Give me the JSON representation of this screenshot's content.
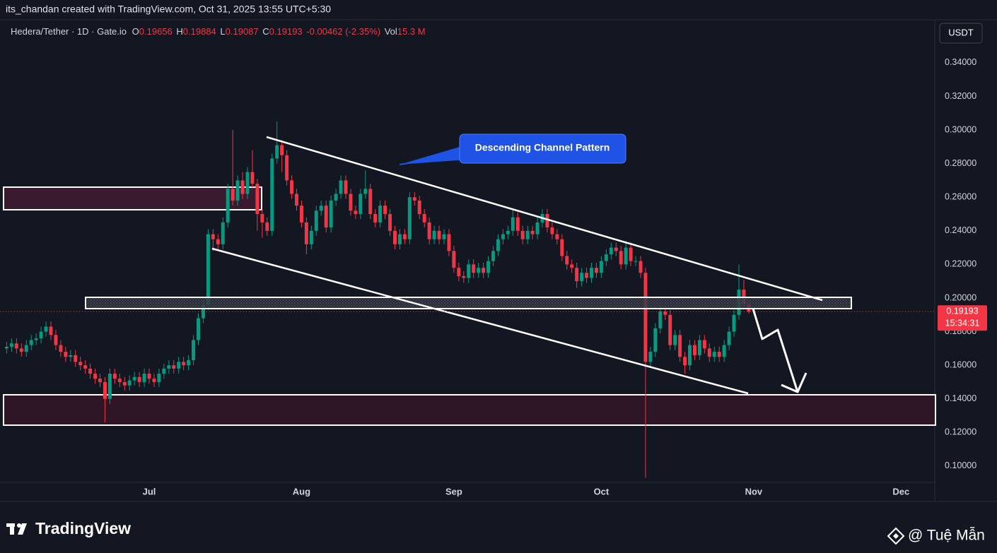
{
  "chart_data": {
    "type": "candlestick",
    "attribution": "its_chandan created with TradingView.com, Oct 31, 2025 13:55 UTC+5:30",
    "legend": {
      "symbol": "Hedera/Tether · 1D · Gate.io",
      "open_label": "O",
      "high_label": "H",
      "low_label": "L",
      "close_label": "C",
      "change": "-0.00462 (-2.35%)",
      "volume_label": "Vol",
      "volume": "15.3 M"
    },
    "currency": "USDT",
    "countdown": "15:34:31",
    "annotations": [
      "Descending Channel Pattern"
    ],
    "logo": "TradingView",
    "watermark": "@ Tuệ Mẫn",
    "up_color": "#089981",
    "down_color": "#f23645",
    "grid": false,
    "ylim": [
      0.0903,
      0.3656
    ],
    "yticks": [
      {
        "value": 0.1,
        "label": "0.10000"
      },
      {
        "value": 0.12,
        "label": "0.12000"
      },
      {
        "value": 0.14,
        "label": "0.14000"
      },
      {
        "value": 0.16,
        "label": "0.16000"
      },
      {
        "value": 0.18,
        "label": "0.18000"
      },
      {
        "value": 0.2,
        "label": "0.20000"
      },
      {
        "value": 0.22,
        "label": "0.22000"
      },
      {
        "value": 0.24,
        "label": "0.24000"
      },
      {
        "value": 0.26,
        "label": "0.26000"
      },
      {
        "value": 0.28,
        "label": "0.28000"
      },
      {
        "value": 0.3,
        "label": "0.30000"
      },
      {
        "value": 0.32,
        "label": "0.32000"
      },
      {
        "value": 0.34,
        "label": "0.34000"
      }
    ],
    "categories": [
      null,
      null,
      null,
      null,
      null,
      null,
      null,
      null,
      null,
      null,
      null,
      null,
      null,
      null,
      null,
      null,
      null,
      null,
      null,
      null,
      null,
      null,
      null,
      null,
      null,
      null,
      null,
      null,
      null,
      null,
      "Jul",
      null,
      null,
      null,
      null,
      null,
      null,
      null,
      null,
      null,
      null,
      null,
      null,
      null,
      null,
      null,
      null,
      null,
      null,
      null,
      null,
      null,
      null,
      null,
      null,
      null,
      null,
      null,
      null,
      null,
      null,
      "Aug",
      null,
      null,
      null,
      null,
      null,
      null,
      null,
      null,
      null,
      null,
      null,
      null,
      null,
      null,
      null,
      null,
      null,
      null,
      null,
      null,
      null,
      null,
      null,
      null,
      null,
      null,
      null,
      null,
      null,
      null,
      "Sep",
      null,
      null,
      null,
      null,
      null,
      null,
      null,
      null,
      null,
      null,
      null,
      null,
      null,
      null,
      null,
      null,
      null,
      null,
      null,
      null,
      null,
      null,
      null,
      null,
      null,
      null,
      null,
      null,
      null,
      "Oct",
      null,
      null,
      null,
      null,
      null,
      null,
      null,
      null,
      null,
      null,
      null,
      null,
      null,
      null,
      null,
      null,
      null,
      null,
      null,
      null,
      null,
      null,
      null,
      null,
      null,
      null,
      null,
      null,
      null,
      null,
      "Nov",
      null,
      null,
      null,
      null,
      null,
      null,
      null,
      null,
      null,
      null,
      null,
      null,
      null,
      null,
      null,
      null,
      null,
      null,
      null,
      null,
      null,
      null,
      null,
      null,
      null,
      null,
      null,
      null,
      null,
      "Dec"
    ],
    "open": [
      null,
      0.17,
      0.171,
      0.173,
      0.17,
      0.168,
      0.172,
      0.175,
      0.176,
      0.18,
      0.183,
      0.178,
      0.172,
      0.168,
      0.165,
      0.166,
      0.162,
      0.16,
      0.158,
      0.155,
      0.152,
      0.15,
      0.14,
      0.155,
      0.152,
      0.15,
      0.148,
      0.151,
      0.153,
      0.15,
      0.155,
      0.152,
      0.15,
      0.155,
      0.158,
      0.16,
      0.158,
      0.162,
      0.16,
      0.163,
      0.175,
      0.188,
      0.196,
      0.238,
      0.235,
      0.232,
      0.245,
      0.265,
      0.258,
      0.27,
      0.262,
      0.275,
      0.268,
      0.25,
      0.245,
      0.24,
      0.283,
      0.291,
      0.285,
      0.27,
      0.262,
      0.255,
      0.245,
      0.232,
      0.24,
      0.252,
      0.255,
      0.242,
      0.258,
      0.262,
      0.27,
      0.262,
      0.252,
      0.25,
      0.262,
      0.265,
      0.25,
      0.245,
      0.255,
      0.25,
      0.24,
      0.232,
      0.238,
      0.235,
      0.26,
      0.258,
      0.25,
      0.245,
      0.235,
      0.24,
      0.235,
      0.238,
      0.228,
      0.218,
      0.213,
      0.212,
      0.22,
      0.215,
      0.218,
      0.215,
      0.222,
      0.228,
      0.235,
      0.238,
      0.24,
      0.248,
      0.24,
      0.235,
      0.24,
      0.238,
      0.245,
      0.25,
      0.242,
      0.238,
      0.235,
      0.225,
      0.22,
      0.218,
      0.21,
      0.215,
      0.212,
      0.218,
      0.215,
      0.222,
      0.226,
      0.23,
      0.228,
      0.22,
      0.23,
      0.222,
      0.222,
      0.215,
      0.162,
      0.168,
      0.182,
      0.192,
      0.19,
      0.172,
      0.178,
      0.165,
      0.16,
      0.172,
      0.166,
      0.175,
      0.17,
      0.165,
      0.168,
      0.165,
      0.172,
      0.18,
      0.19,
      0.205,
      0.19656,
      null,
      null,
      null,
      null,
      null,
      null,
      null,
      null,
      null,
      null,
      null,
      null,
      null,
      null,
      null,
      null,
      null,
      null,
      null,
      null,
      null,
      null,
      null,
      null,
      null,
      null,
      null,
      null,
      null,
      null,
      null
    ],
    "high": [
      null,
      0.174,
      0.176,
      0.176,
      0.173,
      0.175,
      0.178,
      0.179,
      0.183,
      0.186,
      0.186,
      0.181,
      0.175,
      0.171,
      0.169,
      0.169,
      0.165,
      0.163,
      0.161,
      0.158,
      0.155,
      0.153,
      0.158,
      0.158,
      0.155,
      0.153,
      0.154,
      0.156,
      0.156,
      0.158,
      0.158,
      0.155,
      0.158,
      0.161,
      0.163,
      0.163,
      0.165,
      0.165,
      0.166,
      0.178,
      0.191,
      0.199,
      0.241,
      0.241,
      0.238,
      0.248,
      0.268,
      0.3,
      0.273,
      0.275,
      0.278,
      0.288,
      0.271,
      0.253,
      0.248,
      0.286,
      0.305,
      0.294,
      0.288,
      0.273,
      0.265,
      0.258,
      0.248,
      0.243,
      0.255,
      0.258,
      0.258,
      0.261,
      0.265,
      0.273,
      0.273,
      0.265,
      0.255,
      0.265,
      0.276,
      0.268,
      0.253,
      0.258,
      0.258,
      0.253,
      0.243,
      0.241,
      0.241,
      0.263,
      0.263,
      0.261,
      0.253,
      0.248,
      0.243,
      0.243,
      0.241,
      0.241,
      0.231,
      0.221,
      0.216,
      0.223,
      0.223,
      0.221,
      0.221,
      0.225,
      0.231,
      0.238,
      0.241,
      0.243,
      0.253,
      0.251,
      0.243,
      0.243,
      0.243,
      0.248,
      0.253,
      0.253,
      0.245,
      0.241,
      0.238,
      0.228,
      0.223,
      0.221,
      0.218,
      0.218,
      0.221,
      0.221,
      0.225,
      0.229,
      0.233,
      0.233,
      0.231,
      0.234,
      0.233,
      0.225,
      0.225,
      0.218,
      0.171,
      0.185,
      0.195,
      0.195,
      0.193,
      0.181,
      0.181,
      0.168,
      0.175,
      0.175,
      0.178,
      0.178,
      0.173,
      0.171,
      0.171,
      0.175,
      0.183,
      0.193,
      0.22,
      0.211,
      0.19884,
      null,
      null,
      null,
      null,
      null,
      null,
      null,
      null,
      null,
      null,
      null,
      null,
      null,
      null,
      null,
      null,
      null,
      null,
      null,
      null,
      null,
      null,
      null,
      null,
      null,
      null,
      null,
      null,
      null,
      null,
      null
    ],
    "low": [
      null,
      0.167,
      0.168,
      0.167,
      0.165,
      0.165,
      0.169,
      0.172,
      0.173,
      0.177,
      0.175,
      0.169,
      0.165,
      0.162,
      0.162,
      0.159,
      0.157,
      0.155,
      0.152,
      0.149,
      0.147,
      0.126,
      0.137,
      0.149,
      0.147,
      0.145,
      0.145,
      0.148,
      0.147,
      0.147,
      0.149,
      0.147,
      0.147,
      0.152,
      0.155,
      0.155,
      0.155,
      0.157,
      0.157,
      0.16,
      0.172,
      0.185,
      0.193,
      0.228,
      0.229,
      0.229,
      0.242,
      0.255,
      0.255,
      0.259,
      0.259,
      0.265,
      0.24,
      0.236,
      0.237,
      0.237,
      0.28,
      0.275,
      0.267,
      0.259,
      0.252,
      0.242,
      0.226,
      0.229,
      0.237,
      0.249,
      0.239,
      0.239,
      0.255,
      0.259,
      0.259,
      0.249,
      0.247,
      0.247,
      0.259,
      0.247,
      0.242,
      0.242,
      0.247,
      0.237,
      0.229,
      0.229,
      0.232,
      0.232,
      0.255,
      0.247,
      0.242,
      0.232,
      0.232,
      0.232,
      0.232,
      0.225,
      0.215,
      0.21,
      0.209,
      0.209,
      0.212,
      0.212,
      0.212,
      0.212,
      0.219,
      0.225,
      0.232,
      0.235,
      0.237,
      0.237,
      0.232,
      0.232,
      0.235,
      0.235,
      0.242,
      0.239,
      0.235,
      0.232,
      0.222,
      0.217,
      0.215,
      0.206,
      0.207,
      0.209,
      0.209,
      0.212,
      0.212,
      0.219,
      0.223,
      0.225,
      0.217,
      0.217,
      0.219,
      0.219,
      0.212,
      0.093,
      0.159,
      0.165,
      0.179,
      0.187,
      0.169,
      0.169,
      0.162,
      0.155,
      0.157,
      0.163,
      0.163,
      0.167,
      0.162,
      0.162,
      0.162,
      0.162,
      0.169,
      0.177,
      0.187,
      0.194,
      0.19087,
      null,
      null,
      null,
      null,
      null,
      null,
      null,
      null,
      null,
      null,
      null,
      null,
      null,
      null,
      null,
      null,
      null,
      null,
      null,
      null,
      null,
      null,
      null,
      null,
      null,
      null,
      null,
      null,
      null,
      null,
      null
    ],
    "close": [
      null,
      0.171,
      0.173,
      0.17,
      0.168,
      0.172,
      0.175,
      0.176,
      0.18,
      0.183,
      0.178,
      0.172,
      0.168,
      0.165,
      0.166,
      0.162,
      0.16,
      0.158,
      0.155,
      0.152,
      0.15,
      0.14,
      0.155,
      0.152,
      0.15,
      0.148,
      0.151,
      0.153,
      0.15,
      0.155,
      0.152,
      0.15,
      0.155,
      0.158,
      0.16,
      0.158,
      0.162,
      0.16,
      0.163,
      0.175,
      0.188,
      0.196,
      0.238,
      0.235,
      0.232,
      0.245,
      0.265,
      0.258,
      0.27,
      0.262,
      0.275,
      0.268,
      0.25,
      0.245,
      0.24,
      0.283,
      0.291,
      0.285,
      0.27,
      0.262,
      0.255,
      0.245,
      0.232,
      0.24,
      0.252,
      0.255,
      0.242,
      0.258,
      0.262,
      0.27,
      0.262,
      0.252,
      0.25,
      0.262,
      0.265,
      0.25,
      0.245,
      0.255,
      0.25,
      0.24,
      0.232,
      0.238,
      0.235,
      0.26,
      0.258,
      0.25,
      0.245,
      0.235,
      0.24,
      0.235,
      0.238,
      0.228,
      0.218,
      0.213,
      0.212,
      0.22,
      0.215,
      0.218,
      0.215,
      0.222,
      0.228,
      0.235,
      0.238,
      0.24,
      0.248,
      0.24,
      0.235,
      0.24,
      0.238,
      0.245,
      0.25,
      0.242,
      0.238,
      0.235,
      0.225,
      0.22,
      0.218,
      0.21,
      0.215,
      0.212,
      0.218,
      0.215,
      0.222,
      0.226,
      0.23,
      0.228,
      0.22,
      0.23,
      0.222,
      0.222,
      0.215,
      0.162,
      0.168,
      0.182,
      0.192,
      0.19,
      0.172,
      0.178,
      0.165,
      0.16,
      0.172,
      0.166,
      0.175,
      0.17,
      0.165,
      0.168,
      0.165,
      0.172,
      0.18,
      0.19,
      0.205,
      0.19656,
      0.19193,
      null,
      null,
      null,
      null,
      null,
      null,
      null,
      null,
      null,
      null,
      null,
      null,
      null,
      null,
      null,
      null,
      null,
      null,
      null,
      null,
      null,
      null,
      null,
      null,
      null,
      null,
      null,
      null,
      null,
      null,
      null
    ]
  }
}
